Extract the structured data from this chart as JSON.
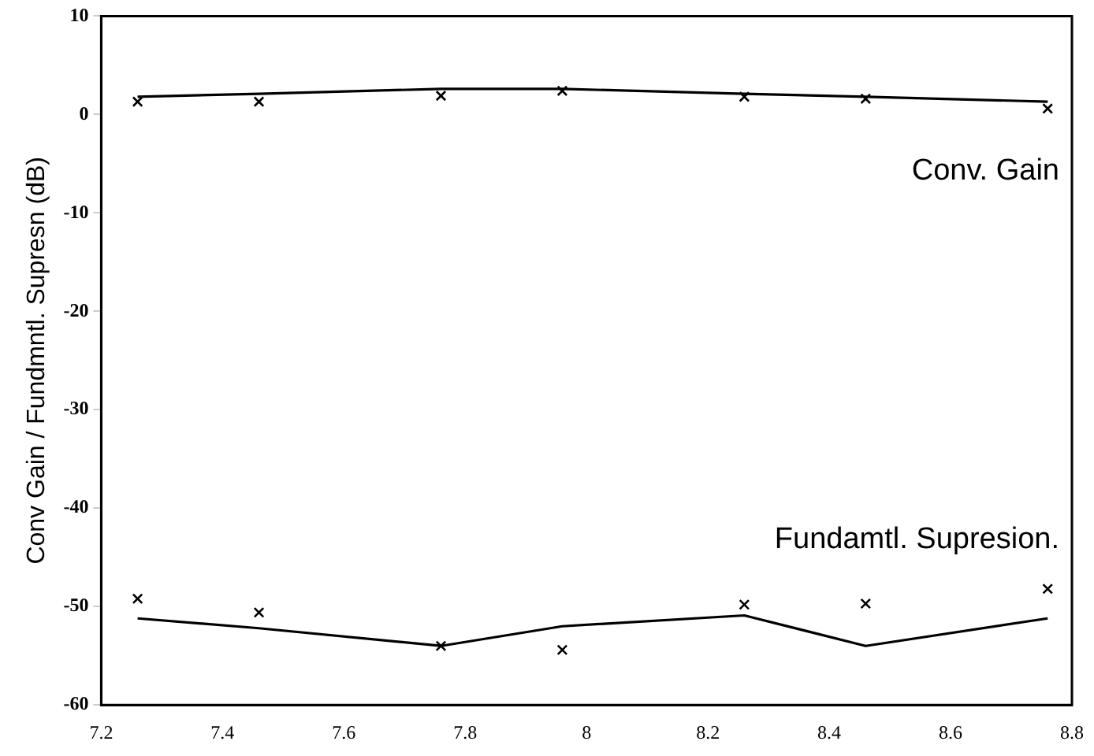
{
  "chart_data": {
    "type": "line",
    "ylabel": "Conv Gain / Fundmntl. Supresn (dB)",
    "xlim": [
      7.2,
      8.8
    ],
    "xticks": [
      7.2,
      7.4,
      7.6,
      7.8,
      {
        "value": 8,
        "label": "8"
      },
      8.2,
      8.4,
      8.6,
      8.8
    ],
    "ylim": [
      -60,
      10
    ],
    "yticks": [
      -60,
      -50,
      -40,
      -30,
      -20,
      -10,
      0,
      10
    ],
    "grid": false,
    "legend": false,
    "series": [
      {
        "name": "Conv. Gain",
        "color": "#000000",
        "marker": "none",
        "x": [
          7.26,
          7.46,
          7.76,
          7.96,
          8.26,
          8.46,
          8.76
        ],
        "values": [
          1.8,
          2.1,
          2.6,
          2.6,
          2.1,
          1.8,
          1.3
        ]
      },
      {
        "type": "scatter",
        "color": "#000000",
        "marker": "cross",
        "x": [
          7.26,
          7.46,
          7.76,
          7.96,
          8.26,
          8.46,
          8.76
        ],
        "values": [
          1.3,
          1.3,
          1.9,
          2.4,
          1.8,
          1.6,
          0.6
        ]
      },
      {
        "name": "Fundamtl. Supresion.",
        "color": "#000000",
        "marker": "none",
        "x": [
          7.26,
          7.46,
          7.76,
          7.96,
          8.26,
          8.46,
          8.76
        ],
        "values": [
          -51.2,
          -52.2,
          -54,
          -52,
          -50.9,
          -54,
          -51.2
        ]
      },
      {
        "type": "scatter",
        "color": "#000000",
        "marker": "cross",
        "x": [
          7.26,
          7.46,
          7.76,
          7.96,
          8.26,
          8.46,
          8.76
        ],
        "values": [
          -49.2,
          -50.6,
          -54,
          -54.4,
          -49.8,
          -49.7,
          -48.2
        ]
      }
    ]
  }
}
